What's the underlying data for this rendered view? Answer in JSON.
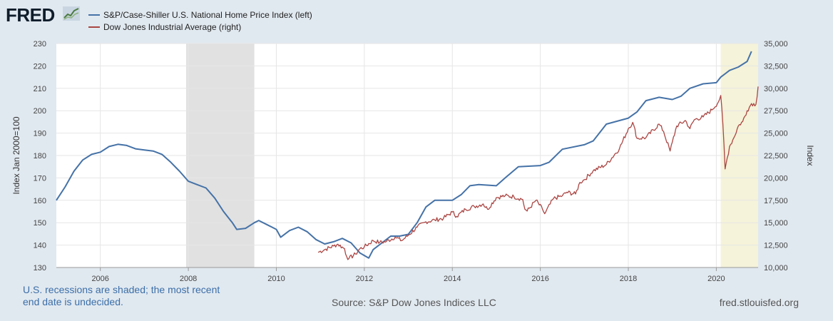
{
  "brand": {
    "logo_text": "FRED"
  },
  "colors": {
    "left_series": "#4572a7",
    "right_series": "#aa4643",
    "recession": "#e1e1e1",
    "undecided": "#f5f3d9",
    "background": "#e1e9f0"
  },
  "footer": {
    "note": "U.S. recessions are shaded; the most recent end date is undecided.",
    "source": "Source: S&P Dow Jones Indices LLC",
    "site": "fred.stlouisfed.org"
  },
  "chart_data": {
    "type": "line",
    "grid": true,
    "legend_position": "top-left",
    "left_axis": {
      "label": "Index Jan 2000=100",
      "range": [
        130,
        230
      ],
      "ticks": [
        "130",
        "140",
        "150",
        "160",
        "170",
        "180",
        "190",
        "200",
        "210",
        "220",
        "230"
      ]
    },
    "right_axis": {
      "label": "Index",
      "range": [
        10000,
        35000
      ],
      "ticks": [
        "10,000",
        "12,500",
        "15,000",
        "17,500",
        "20,000",
        "22,500",
        "25,000",
        "27,500",
        "30,000",
        "32,500",
        "35,000"
      ]
    },
    "x_axis": {
      "range": [
        2005.0,
        2020.95
      ],
      "ticks": [
        "2006",
        "2008",
        "2010",
        "2012",
        "2014",
        "2016",
        "2018",
        "2020"
      ]
    },
    "shaded_periods": [
      {
        "start": 2007.95,
        "end": 2009.5,
        "type": "recession"
      },
      {
        "start": 2020.1,
        "end": 2020.95,
        "type": "undecided"
      }
    ],
    "series": [
      {
        "name": "S&P/Case-Shiller U.S. National Home Price Index (left)",
        "axis": "left",
        "x": [
          2005.0,
          2005.2,
          2005.4,
          2005.6,
          2005.8,
          2006.0,
          2006.2,
          2006.4,
          2006.6,
          2006.8,
          2007.0,
          2007.2,
          2007.4,
          2007.6,
          2007.8,
          2008.0,
          2008.2,
          2008.4,
          2008.6,
          2008.8,
          2009.0,
          2009.1,
          2009.3,
          2009.5,
          2009.6,
          2009.8,
          2010.0,
          2010.1,
          2010.3,
          2010.5,
          2010.7,
          2010.9,
          2011.1,
          2011.3,
          2011.5,
          2011.7,
          2011.9,
          2012.1,
          2012.2,
          2012.4,
          2012.6,
          2012.8,
          2013.0,
          2013.2,
          2013.4,
          2013.6,
          2014.0,
          2014.2,
          2014.4,
          2014.6,
          2015.0,
          2015.2,
          2015.5,
          2016.0,
          2016.2,
          2016.5,
          2017.0,
          2017.2,
          2017.5,
          2018.0,
          2018.2,
          2018.4,
          2018.7,
          2019.0,
          2019.2,
          2019.4,
          2019.7,
          2020.0,
          2020.1,
          2020.3,
          2020.5,
          2020.7,
          2020.8
        ],
        "values": [
          160,
          166,
          173,
          178,
          180.5,
          181.5,
          184,
          185,
          184.5,
          183,
          182.5,
          182,
          180.5,
          177,
          173,
          168.5,
          167,
          165.5,
          161,
          155,
          150,
          147,
          147.5,
          150,
          151,
          149,
          147,
          143.5,
          146.5,
          148,
          146,
          142.5,
          140.5,
          141.5,
          143,
          141,
          136.5,
          134.2,
          138,
          141,
          144,
          144,
          144.8,
          150,
          157,
          160,
          160,
          162.5,
          166.5,
          167,
          166.5,
          170,
          175,
          175.5,
          177,
          182.8,
          184.8,
          186.5,
          194,
          196.7,
          199.5,
          204.5,
          206,
          205,
          206.5,
          210,
          212,
          212.5,
          215,
          218,
          219.5,
          222,
          226.5
        ]
      },
      {
        "name": "Dow Jones Industrial Average (right)",
        "axis": "right",
        "x": [
          2010.95,
          2011.1,
          2011.3,
          2011.4,
          2011.55,
          2011.6,
          2011.65,
          2011.8,
          2011.9,
          2012.0,
          2012.2,
          2012.35,
          2012.5,
          2012.7,
          2012.85,
          2013.0,
          2013.2,
          2013.4,
          2013.6,
          2013.8,
          2014.0,
          2014.1,
          2014.3,
          2014.5,
          2014.7,
          2014.8,
          2015.0,
          2015.2,
          2015.4,
          2015.6,
          2015.65,
          2015.7,
          2015.9,
          2016.05,
          2016.1,
          2016.3,
          2016.5,
          2016.6,
          2016.8,
          2016.9,
          2017.0,
          2017.2,
          2017.5,
          2017.8,
          2018.0,
          2018.1,
          2018.2,
          2018.4,
          2018.7,
          2018.8,
          2018.95,
          2019.0,
          2019.1,
          2019.3,
          2019.4,
          2019.5,
          2019.7,
          2019.9,
          2020.05,
          2020.1,
          2020.15,
          2020.2,
          2020.3,
          2020.4,
          2020.5,
          2020.6,
          2020.7,
          2020.8,
          2020.9,
          2020.95
        ],
        "values": [
          11700,
          12000,
          12400,
          12600,
          12100,
          11200,
          11000,
          11500,
          12100,
          12300,
          13000,
          12800,
          12900,
          13400,
          13000,
          13600,
          14500,
          15100,
          15300,
          15500,
          16200,
          15700,
          16500,
          16800,
          17100,
          16500,
          17800,
          18000,
          17900,
          17600,
          16500,
          16300,
          17500,
          16500,
          16000,
          17700,
          18000,
          18400,
          18200,
          19500,
          19800,
          20800,
          21500,
          23300,
          25500,
          26200,
          24400,
          24500,
          26000,
          25200,
          23000,
          24000,
          25800,
          26400,
          25500,
          26500,
          26800,
          27600,
          28500,
          29200,
          26000,
          21000,
          23500,
          24500,
          25800,
          26300,
          27500,
          28300,
          28200,
          30200
        ]
      }
    ]
  }
}
